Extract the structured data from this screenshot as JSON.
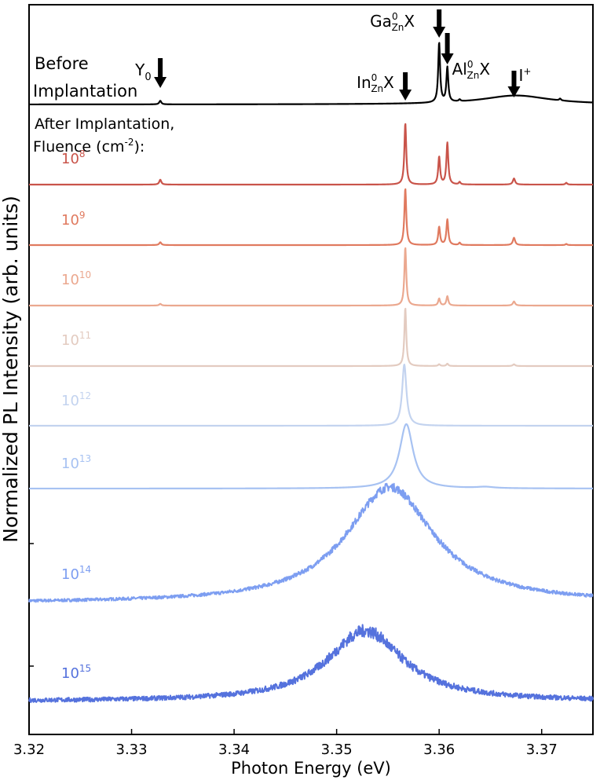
{
  "chart_data": {
    "type": "line",
    "title": "",
    "xlabel": "Photon Energy (eV)",
    "ylabel": "Normalized PL Intensity (arb. units)",
    "xlim": [
      3.32,
      3.375
    ],
    "xticks": [
      "3.32",
      "3.33",
      "3.34",
      "3.35",
      "3.36",
      "3.37"
    ],
    "xtick_values": [
      3.32,
      3.33,
      3.34,
      3.35,
      3.36,
      3.37
    ],
    "grid": false,
    "legend": "none",
    "before_label": [
      "Before",
      "Implantation"
    ],
    "after_label": [
      "After Implantation,",
      "Fluence (cm",
      "-2",
      "):"
    ],
    "peak_markers": [
      {
        "base": "Y",
        "sub": "0",
        "sup": "",
        "tail": "",
        "x": 3.3328
      },
      {
        "base": "In",
        "sub": "Zn",
        "sup": "0",
        "tail": "X",
        "x": 3.3567
      },
      {
        "base": "Ga",
        "sub": "Zn",
        "sup": "0",
        "tail": "X",
        "x": 3.36
      },
      {
        "base": "Al",
        "sub": "Zn",
        "sup": "0",
        "tail": "X",
        "x": 3.3608
      },
      {
        "base": "I",
        "sub": "",
        "sup": "+",
        "tail": "",
        "x": 3.3673
      }
    ],
    "series": [
      {
        "name": "Before Implantation",
        "exponent": "",
        "color": "#000000",
        "noise": 0.0,
        "peaks": [
          [
            3.3328,
            0.06,
            0.00012
          ],
          [
            3.36,
            1.0,
            0.00011
          ],
          [
            3.3608,
            0.58,
            0.00011
          ],
          [
            3.362,
            0.03,
            0.0001
          ],
          [
            3.3675,
            0.15,
            0.004
          ],
          [
            3.3718,
            0.03,
            0.0001
          ]
        ]
      },
      {
        "name": "1e8",
        "exponent": "8",
        "color": "#c9544a",
        "noise": 0.0,
        "peaks": [
          [
            3.3328,
            0.08,
            0.00012
          ],
          [
            3.3567,
            1.0,
            0.00011
          ],
          [
            3.36,
            0.45,
            0.00011
          ],
          [
            3.3608,
            0.68,
            0.00011
          ],
          [
            3.362,
            0.04,
            0.0001
          ],
          [
            3.3673,
            0.1,
            0.00013
          ],
          [
            3.3724,
            0.03,
            0.0001
          ]
        ]
      },
      {
        "name": "1e9",
        "exponent": "9",
        "color": "#e07a5f",
        "noise": 0.0,
        "peaks": [
          [
            3.3328,
            0.05,
            0.00012
          ],
          [
            3.3567,
            1.0,
            0.00011
          ],
          [
            3.36,
            0.32,
            0.00011
          ],
          [
            3.3608,
            0.45,
            0.00011
          ],
          [
            3.362,
            0.04,
            0.0001
          ],
          [
            3.3673,
            0.13,
            0.00013
          ],
          [
            3.3724,
            0.02,
            0.0001
          ]
        ]
      },
      {
        "name": "1e10",
        "exponent": "10",
        "color": "#eba88f",
        "noise": 0.0,
        "peaks": [
          [
            3.3328,
            0.03,
            0.00012
          ],
          [
            3.3567,
            1.0,
            0.00011
          ],
          [
            3.36,
            0.12,
            0.00011
          ],
          [
            3.3608,
            0.16,
            0.00011
          ],
          [
            3.3673,
            0.07,
            0.00013
          ]
        ]
      },
      {
        "name": "1e11",
        "exponent": "11",
        "color": "#e3cbc0",
        "noise": 0.0,
        "peaks": [
          [
            3.3567,
            1.0,
            0.00011
          ],
          [
            3.36,
            0.03,
            0.00011
          ],
          [
            3.3608,
            0.04,
            0.00011
          ],
          [
            3.3673,
            0.03,
            0.00013
          ]
        ]
      },
      {
        "name": "1e12",
        "exponent": "12",
        "color": "#c3d3ef",
        "noise": 0.0,
        "peaks": [
          [
            3.3566,
            1.0,
            0.00025
          ]
        ]
      },
      {
        "name": "1e13",
        "exponent": "13",
        "color": "#a7c2f2",
        "noise": 0.0,
        "peaks": [
          [
            3.3568,
            1.0,
            0.0008
          ],
          [
            3.3645,
            0.02,
            0.001
          ]
        ]
      },
      {
        "name": "1e14",
        "exponent": "14",
        "color": "#7d9ef1",
        "noise": 0.012,
        "peaks": [
          [
            3.3552,
            1.0,
            0.0052
          ]
        ]
      },
      {
        "name": "1e15",
        "exponent": "15",
        "color": "#5572dd",
        "noise": 0.03,
        "peaks": [
          [
            3.3528,
            1.0,
            0.0045
          ]
        ]
      }
    ]
  }
}
